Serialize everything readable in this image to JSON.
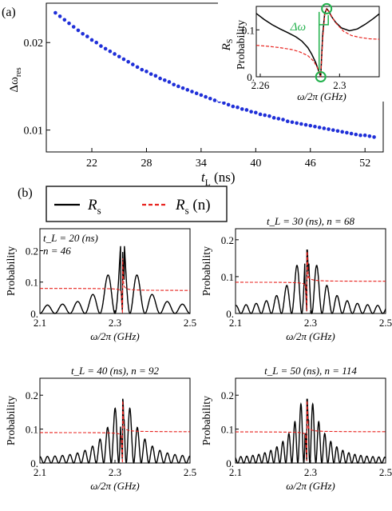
{
  "panel_labels": {
    "a": "(a)",
    "b": "(b)"
  },
  "colors": {
    "dots": "#1f2fd8",
    "rs_line": "#000000",
    "rsn_line": "#e8231f",
    "annotation": "#22b14c"
  },
  "chart_data": [
    {
      "id": "a-main",
      "type": "scatter",
      "xlabel_base": "t",
      "xlabel_sub": "L",
      "xlabel_unit": " (ns)",
      "ylabel_base": "Δω",
      "ylabel_sub": "res",
      "xlim": [
        17,
        54
      ],
      "ylim": [
        0.0075,
        0.0245
      ],
      "xticks": [
        "22",
        "28",
        "34",
        "40",
        "46",
        "52"
      ],
      "yticks": [
        "0.01",
        "0.02"
      ],
      "grid": false,
      "series": [
        {
          "x": [
            18.0,
            18.5,
            19.0,
            19.5,
            20.0,
            20.5,
            21.0,
            21.5,
            22.0,
            22.5,
            23.0,
            23.5,
            24.0,
            24.5,
            25.0,
            25.5,
            26.0,
            26.5,
            27.0,
            27.5,
            28.0,
            28.5,
            29.0,
            29.5,
            30.0,
            30.5,
            31.0,
            31.5,
            32.0,
            32.5,
            33.0,
            33.5,
            34.0,
            34.5,
            35.0,
            35.5,
            36.0,
            36.5,
            37.0,
            37.5,
            38.0,
            38.5,
            39.0,
            39.5,
            40.0,
            40.5,
            41.0,
            41.5,
            42.0,
            42.5,
            43.0,
            43.5,
            44.0,
            44.5,
            45.0,
            45.5,
            46.0,
            46.5,
            47.0,
            47.5,
            48.0,
            48.5,
            49.0,
            49.5,
            50.0,
            50.5,
            51.0,
            51.5,
            52.0,
            52.5,
            53.0
          ],
          "y": [
            0.0234,
            0.023,
            0.0226,
            0.0222,
            0.0218,
            0.0214,
            0.021,
            0.0207,
            0.0203,
            0.02,
            0.0196,
            0.0193,
            0.019,
            0.0187,
            0.0184,
            0.0181,
            0.0178,
            0.0175,
            0.0172,
            0.0169,
            0.0167,
            0.0164,
            0.0162,
            0.0159,
            0.0157,
            0.0155,
            0.0152,
            0.015,
            0.0148,
            0.0146,
            0.0144,
            0.0142,
            0.014,
            0.0138,
            0.0136,
            0.0134,
            0.0133,
            0.0131,
            0.0129,
            0.0127,
            0.0126,
            0.0124,
            0.0123,
            0.0121,
            0.012,
            0.0118,
            0.0117,
            0.0116,
            0.0114,
            0.0113,
            0.0112,
            0.011,
            0.0109,
            0.0108,
            0.0107,
            0.0106,
            0.0105,
            0.0104,
            0.0103,
            0.0102,
            0.0101,
            0.01,
            0.0099,
            0.0098,
            0.0097,
            0.0096,
            0.0095,
            0.0094,
            0.0094,
            0.0093,
            0.0092
          ]
        }
      ]
    },
    {
      "id": "a-inset",
      "type": "line",
      "ylabel_top": "R",
      "ylabel_top_sub": "S",
      "ylabel": "Probability",
      "xlabel": "ω/2π (GHz)",
      "xlim": [
        2.258,
        2.32
      ],
      "ylim": [
        0,
        0.15
      ],
      "xticks": [
        "2.26",
        "2.3"
      ],
      "yticks": [
        "0.",
        "0.1"
      ],
      "annotation": "Δω",
      "markers": [
        {
          "x": 2.2935,
          "y": 0.145
        },
        {
          "x": 2.2905,
          "y": 0.0
        }
      ],
      "series": [
        {
          "name": "R_s",
          "style": "solid",
          "x": [
            2.258,
            2.262,
            2.266,
            2.27,
            2.274,
            2.278,
            2.281,
            2.284,
            2.286,
            2.288,
            2.2895,
            2.2905,
            2.2915,
            2.2925,
            2.2935,
            2.2945,
            2.296,
            2.298,
            2.301,
            2.305,
            2.309,
            2.313,
            2.317,
            2.32
          ],
          "y": [
            0.135,
            0.122,
            0.111,
            0.102,
            0.094,
            0.085,
            0.076,
            0.062,
            0.048,
            0.03,
            0.012,
            0.0,
            0.09,
            0.135,
            0.145,
            0.14,
            0.128,
            0.116,
            0.104,
            0.098,
            0.102,
            0.112,
            0.124,
            0.134
          ]
        },
        {
          "name": "R_s (n)",
          "style": "dashed",
          "x": [
            2.258,
            2.264,
            2.27,
            2.276,
            2.28,
            2.284,
            2.287,
            2.289,
            2.2905,
            2.2915,
            2.2925,
            2.2935,
            2.295,
            2.298,
            2.302,
            2.306,
            2.31,
            2.315,
            2.32
          ],
          "y": [
            0.067,
            0.065,
            0.062,
            0.058,
            0.053,
            0.045,
            0.033,
            0.018,
            0.0,
            0.08,
            0.132,
            0.145,
            0.136,
            0.115,
            0.097,
            0.088,
            0.084,
            0.081,
            0.08
          ]
        }
      ]
    },
    {
      "id": "b-legend",
      "type": "legend",
      "entries": [
        {
          "label_base": "R",
          "label_sub": "s",
          "label_suffix": "",
          "style": "solid"
        },
        {
          "label_base": "R",
          "label_sub": "s",
          "label_suffix": " (n)",
          "style": "dashed"
        }
      ]
    },
    {
      "id": "b-20",
      "type": "line",
      "annotation_lines": [
        "t_L = 20 (ns)",
        "n = 46"
      ],
      "annotation_inside": true,
      "ylabel": "Probability",
      "xlabel": "ω/2π (GHz)",
      "xlim": [
        2.1,
        2.5
      ],
      "ylim": [
        0,
        0.27
      ],
      "xticks": [
        "2.1",
        "2.3",
        "2.5"
      ],
      "yticks": [
        "0.",
        "0.1",
        "0.2"
      ],
      "center": 2.32,
      "osc_period": 0.04,
      "peak": 0.26,
      "base": 0.08,
      "base_right": 0.073,
      "left_amp_start": 0.025
    },
    {
      "id": "b-30",
      "type": "line",
      "annotation_lines": [
        "t_L = 30 (ns), n = 68"
      ],
      "annotation_inside": false,
      "ylabel": "Probability",
      "xlabel": "ω/2π (GHz)",
      "xlim": [
        2.1,
        2.5
      ],
      "ylim": [
        0,
        0.23
      ],
      "xticks": [
        "2.1",
        "2.3",
        "2.5"
      ],
      "yticks": [
        "0.",
        "0.1",
        "0.2"
      ],
      "center": 2.29,
      "osc_period": 0.027,
      "peak": 0.215,
      "base": 0.085,
      "base_right": 0.087,
      "left_amp_start": 0.02
    },
    {
      "id": "b-40",
      "type": "line",
      "annotation_lines": [
        "t_L = 40 (ns), n = 92"
      ],
      "annotation_inside": false,
      "ylabel": "Probability",
      "xlabel": "ω/2π (GHz)",
      "xlim": [
        2.1,
        2.5
      ],
      "ylim": [
        0,
        0.25
      ],
      "xticks": [
        "2.1",
        "2.3",
        "2.5"
      ],
      "yticks": [
        "0.",
        "0.1",
        "0.2"
      ],
      "center": 2.32,
      "osc_period": 0.02,
      "peak": 0.235,
      "base": 0.09,
      "base_right": 0.092,
      "left_amp_start": 0.018
    },
    {
      "id": "b-50",
      "type": "line",
      "annotation_lines": [
        "t_L = 50 (ns), n = 114"
      ],
      "annotation_inside": false,
      "ylabel": "Probability",
      "xlabel": "ω/2π (GHz)",
      "xlim": [
        2.1,
        2.5
      ],
      "ylim": [
        0,
        0.25
      ],
      "xticks": [
        "2.1",
        "2.3",
        "2.5"
      ],
      "yticks": [
        "0.",
        "0.1",
        "0.2"
      ],
      "center": 2.29,
      "osc_period": 0.016,
      "peak": 0.235,
      "base": 0.092,
      "base_right": 0.092,
      "left_amp_start": 0.016
    }
  ]
}
